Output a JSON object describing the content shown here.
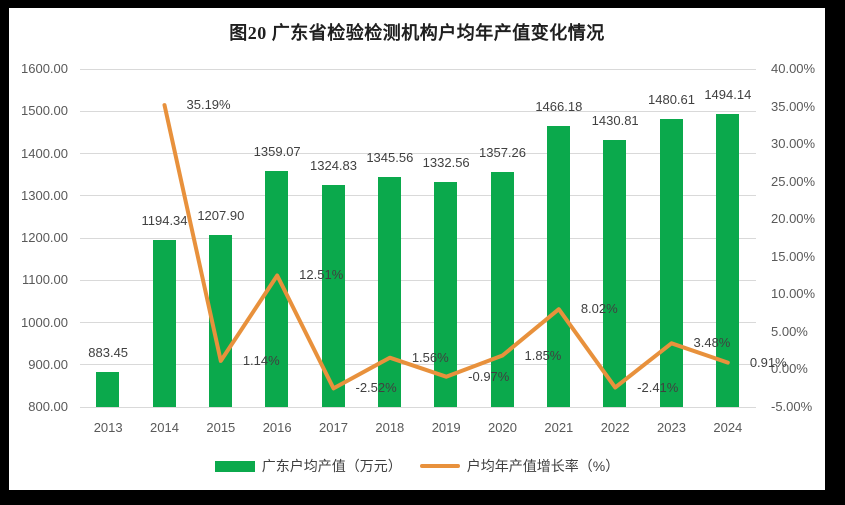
{
  "title": "图20 广东省检验检测机构户均年产值变化情况",
  "chart_data": {
    "type": "combo-bar-line",
    "categories": [
      "2013",
      "2014",
      "2015",
      "2016",
      "2017",
      "2018",
      "2019",
      "2020",
      "2021",
      "2022",
      "2023",
      "2024"
    ],
    "series": [
      {
        "name": "广东户均产值（万元）",
        "type": "bar",
        "axis": "left",
        "color": "#0BA94C",
        "values": [
          883.45,
          1194.34,
          1207.9,
          1359.07,
          1324.83,
          1345.56,
          1332.56,
          1357.26,
          1466.18,
          1430.81,
          1480.61,
          1494.14
        ],
        "labels": [
          "883.45",
          "1194.34",
          "1207.90",
          "1359.07",
          "1324.83",
          "1345.56",
          "1332.56",
          "1357.26",
          "1466.18",
          "1430.81",
          "1480.61",
          "1494.14"
        ]
      },
      {
        "name": "户均年产值增长率（%）",
        "type": "line",
        "axis": "right",
        "color": "#E8913C",
        "values": [
          null,
          35.19,
          1.14,
          12.51,
          -2.52,
          1.56,
          -0.97,
          1.85,
          8.02,
          -2.41,
          3.48,
          0.91
        ],
        "labels": [
          null,
          "35.19%",
          "1.14%",
          "12.51%",
          "-2.52%",
          "1.56%",
          "-0.97%",
          "1.85%",
          "8.02%",
          "-2.41%",
          "3.48%",
          "0.91%"
        ]
      }
    ],
    "left_axis": {
      "min": 800,
      "max": 1600,
      "step": 100,
      "tick_labels": [
        "800.00",
        "900.00",
        "1000.00",
        "1100.00",
        "1200.00",
        "1300.00",
        "1400.00",
        "1500.00",
        "1600.00"
      ]
    },
    "right_axis": {
      "min": -5,
      "max": 40,
      "step": 5,
      "tick_labels": [
        "-5.00%",
        "0.00%",
        "5.00%",
        "10.00%",
        "15.00%",
        "20.00%",
        "25.00%",
        "30.00%",
        "35.00%",
        "40.00%"
      ]
    },
    "grid": true,
    "grid_color": "#D9D9D9",
    "axis_text_color": "#595959",
    "label_text_color": "#404040",
    "legend_position": "bottom"
  }
}
